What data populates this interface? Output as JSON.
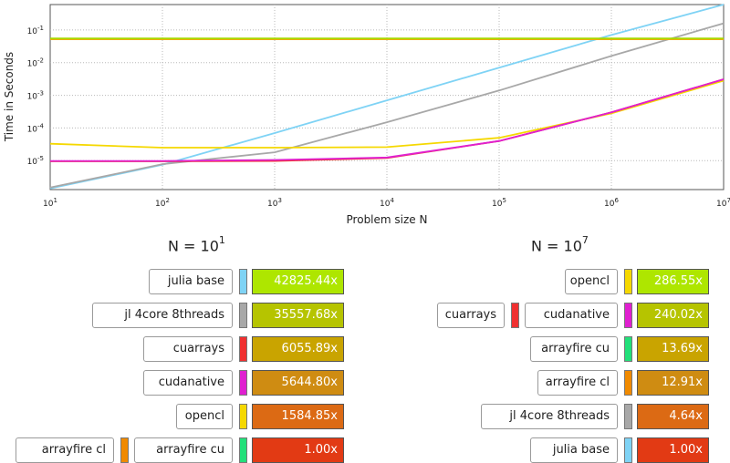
{
  "chart_data": {
    "type": "line",
    "xlabel": "Problem size N",
    "ylabel": "Time in Seconds",
    "xscale": "log",
    "yscale": "log",
    "xlim": [
      10,
      10000000
    ],
    "ylim": [
      1.3e-06,
      0.6
    ],
    "grid": true,
    "x_ticks": [
      {
        "base": "10",
        "exp": "1"
      },
      {
        "base": "10",
        "exp": "2"
      },
      {
        "base": "10",
        "exp": "3"
      },
      {
        "base": "10",
        "exp": "4"
      },
      {
        "base": "10",
        "exp": "5"
      },
      {
        "base": "10",
        "exp": "6"
      },
      {
        "base": "10",
        "exp": "7"
      }
    ],
    "y_ticks": [
      {
        "base": "10",
        "exp": "-5"
      },
      {
        "base": "10",
        "exp": "-4"
      },
      {
        "base": "10",
        "exp": "-3"
      },
      {
        "base": "10",
        "exp": "-2"
      },
      {
        "base": "10",
        "exp": "-1"
      }
    ],
    "x": [
      10,
      100,
      1000,
      10000,
      100000,
      1000000,
      10000000
    ],
    "series": [
      {
        "color": "#7fd3f5",
        "values": [
          1.4e-06,
          7.5e-06,
          7e-05,
          0.0007,
          0.007,
          0.07,
          0.65
        ]
      },
      {
        "color": "#a8a8a8",
        "values": [
          1.5e-06,
          7.8e-06,
          1.8e-05,
          0.00015,
          0.0014,
          0.016,
          0.16
        ]
      },
      {
        "color": "#f5d800",
        "values": [
          3.3e-05,
          2.5e-05,
          2.5e-05,
          2.6e-05,
          5e-05,
          0.00028,
          0.0028
        ]
      },
      {
        "color": "#f03030",
        "values": [
          9.5e-06,
          9.5e-06,
          9.8e-06,
          1.2e-05,
          4e-05,
          0.0003,
          0.0031
        ]
      },
      {
        "color": "#e020d0",
        "values": [
          9.8e-06,
          9.8e-06,
          1.05e-05,
          1.25e-05,
          4e-05,
          0.0003,
          0.0031
        ]
      },
      {
        "color": "#f7a800",
        "values": [
          0.052,
          0.052,
          0.052,
          0.052,
          0.052,
          0.052,
          0.052
        ]
      },
      {
        "color": "#a8d800",
        "values": [
          0.055,
          0.055,
          0.055,
          0.055,
          0.055,
          0.055,
          0.055
        ]
      }
    ]
  },
  "left_panel": {
    "title_base": "N = 10",
    "title_exp": "1",
    "rows": [
      {
        "name": "julia base",
        "color": "#7fd3f5",
        "value": "42825.44x",
        "bar_color": "#aee600"
      },
      {
        "name": "jl 4core 8threads",
        "color": "#a8a8a8",
        "value": "35557.68x",
        "bar_color": "#b6c400"
      },
      {
        "name": "cuarrays",
        "color": "#f03030",
        "value": "6055.89x",
        "bar_color": "#c9a400"
      },
      {
        "name": "cudanative",
        "color": "#e020d0",
        "value": "5644.80x",
        "bar_color": "#cf8c12"
      },
      {
        "name": "opencl",
        "color": "#f5d800",
        "value": "1584.85x",
        "bar_color": "#dc6a14"
      },
      {
        "name": "arrayfire cu",
        "color": "#22e07a",
        "value": "1.00x",
        "bar_color": "#e23a14",
        "extra_name": "arrayfire cl",
        "extra_color": "#f08a00"
      }
    ]
  },
  "right_panel": {
    "title_base": "N = 10",
    "title_exp": "7",
    "rows": [
      {
        "name": "opencl",
        "color": "#f5d800",
        "value": "286.55x",
        "bar_color": "#aee600"
      },
      {
        "name": "cudanative",
        "color": "#e020d0",
        "value": "240.02x",
        "bar_color": "#b6c400",
        "extra_name": "cuarrays",
        "extra_color": "#f03030"
      },
      {
        "name": "arrayfire cu",
        "color": "#22e07a",
        "value": "13.69x",
        "bar_color": "#c9a400"
      },
      {
        "name": "arrayfire cl",
        "color": "#f08a00",
        "value": "12.91x",
        "bar_color": "#cf8c12"
      },
      {
        "name": "jl 4core 8threads",
        "color": "#a8a8a8",
        "value": "4.64x",
        "bar_color": "#dc6a14"
      },
      {
        "name": "julia base",
        "color": "#7fd3f5",
        "value": "1.00x",
        "bar_color": "#e23a14"
      }
    ]
  }
}
